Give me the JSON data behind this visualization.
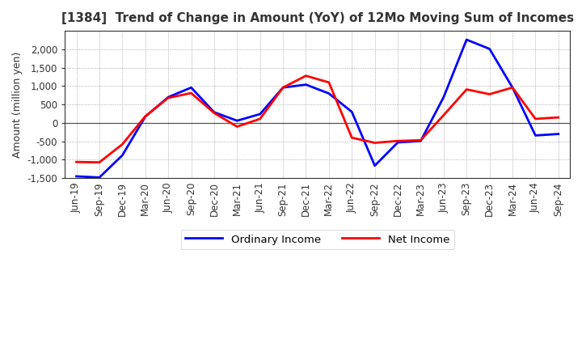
{
  "title": "[1384]  Trend of Change in Amount (YoY) of 12Mo Moving Sum of Incomes",
  "ylabel": "Amount (million yen)",
  "background_color": "#ffffff",
  "plot_bg_color": "#ffffff",
  "grid_color": "#999999",
  "x_labels": [
    "Jun-19",
    "Sep-19",
    "Dec-19",
    "Mar-20",
    "Jun-20",
    "Sep-20",
    "Dec-20",
    "Mar-21",
    "Jun-21",
    "Sep-21",
    "Dec-21",
    "Mar-22",
    "Jun-22",
    "Sep-22",
    "Dec-22",
    "Mar-23",
    "Jun-23",
    "Sep-23",
    "Dec-23",
    "Mar-24",
    "Jun-24",
    "Sep-24"
  ],
  "ordinary_income": [
    -1450,
    -1480,
    -880,
    170,
    700,
    960,
    290,
    60,
    240,
    960,
    1040,
    800,
    300,
    -1160,
    -530,
    -490,
    700,
    2260,
    2010,
    960,
    -340,
    -300
  ],
  "net_income": [
    -1060,
    -1070,
    -580,
    180,
    680,
    810,
    270,
    -100,
    110,
    960,
    1280,
    1100,
    -400,
    -540,
    -490,
    -470,
    210,
    910,
    780,
    960,
    110,
    150
  ],
  "ordinary_income_color": "#0000ff",
  "net_income_color": "#ff0000",
  "ylim": [
    -1500,
    2500
  ],
  "yticks": [
    -1500,
    -1000,
    -500,
    0,
    500,
    1000,
    1500,
    2000
  ],
  "legend_labels": [
    "Ordinary Income",
    "Net Income"
  ],
  "line_width": 2.0,
  "title_color": "#333333",
  "title_fontsize": 11,
  "ylabel_fontsize": 9,
  "tick_fontsize": 8.5
}
